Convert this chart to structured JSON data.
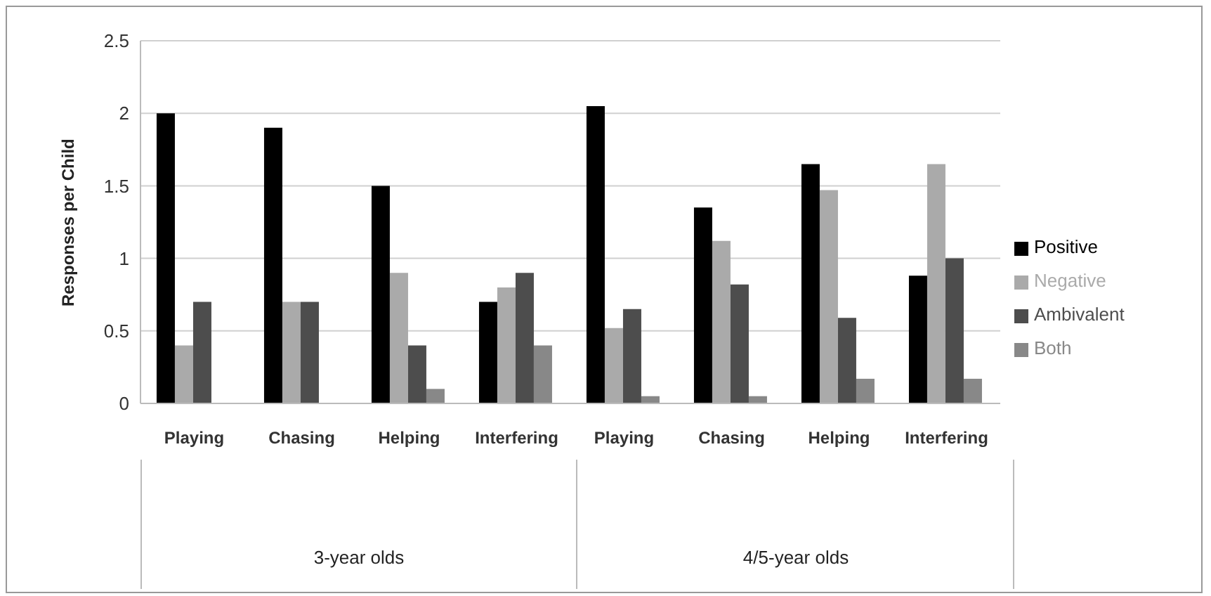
{
  "chart_data": {
    "type": "bar",
    "ylabel": "Responses per Child",
    "categories": [
      "Playing",
      "Chasing",
      "Helping",
      "Interfering",
      "Playing",
      "Chasing",
      "Helping",
      "Interfering"
    ],
    "series": [
      {
        "name": "Positive",
        "color": "#000000",
        "values": [
          2,
          1.9,
          1.5,
          0.7,
          2.05,
          1.35,
          1.65,
          0.88
        ]
      },
      {
        "name": "Negative",
        "color": "#aaaaaa",
        "values": [
          0.4,
          0.7,
          0.9,
          0.8,
          0.52,
          1.12,
          1.47,
          1.65
        ]
      },
      {
        "name": "Ambivalent",
        "color": "#4d4d4d",
        "values": [
          0.7,
          0.7,
          0.4,
          0.9,
          0.65,
          0.82,
          0.59,
          1.0
        ]
      },
      {
        "name": "Both",
        "color": "#888888",
        "values": [
          0,
          0,
          0.1,
          0.4,
          0.05,
          0.05,
          0.17,
          0.17
        ]
      }
    ],
    "annotations": [
      "3-year olds",
      "4/5-year olds"
    ],
    "ylim": [
      0,
      2.5
    ],
    "yticks": [
      0,
      0.5,
      1,
      1.5,
      2,
      2.5
    ],
    "grid": "y",
    "legend": "right"
  }
}
